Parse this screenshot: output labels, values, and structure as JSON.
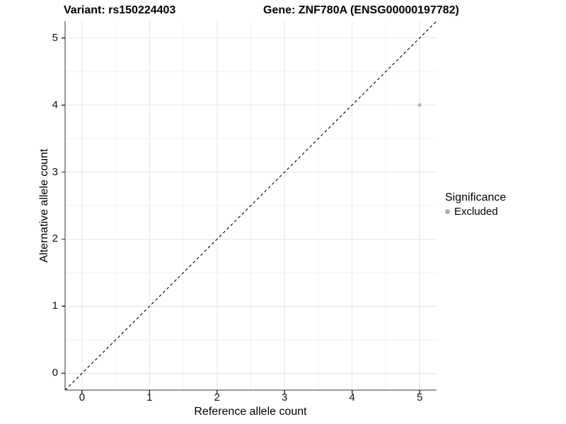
{
  "titles": {
    "variant": "Variant: rs150224403",
    "gene": "Gene: ZNF780A (ENSG00000197782)"
  },
  "chart_data": {
    "type": "scatter",
    "title_left": "Variant: rs150224403",
    "title_right": "Gene: ZNF780A (ENSG00000197782)",
    "xlabel": "Reference allele count",
    "ylabel": "Alternative allele count",
    "xlim": [
      -0.25,
      5.25
    ],
    "ylim": [
      -0.25,
      5.25
    ],
    "x_ticks": [
      0,
      1,
      2,
      3,
      4,
      5
    ],
    "y_ticks": [
      0,
      1,
      2,
      3,
      4,
      5
    ],
    "minor_ticks": [
      0.5,
      1.5,
      2.5,
      3.5,
      4.5
    ],
    "grid": "major+minor",
    "reference_line": {
      "type": "identity",
      "style": "dashed",
      "color": "#000000"
    },
    "series": [
      {
        "name": "Excluded",
        "color": "#b5b5b5",
        "point_radius": 2.6,
        "points": [
          {
            "x": 5,
            "y": 4
          }
        ]
      }
    ],
    "legend": {
      "title": "Significance",
      "position": "right",
      "items": [
        {
          "label": "Excluded",
          "color": "#b0b0b0"
        }
      ]
    }
  },
  "colors": {
    "background": "#ffffff",
    "grid_major": "#e6e6e6",
    "grid_minor": "#f2f2f2",
    "axis_line": "#333333",
    "text": "#000000",
    "point": "#b5b5b5"
  }
}
